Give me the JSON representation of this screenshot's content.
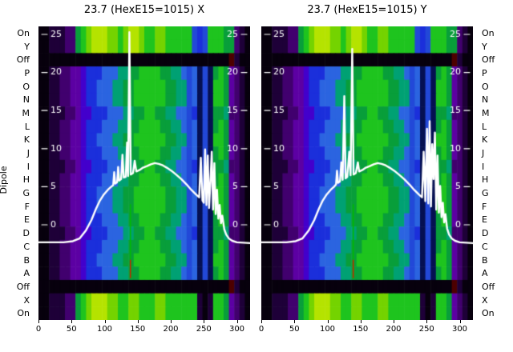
{
  "figure": {
    "background": "#ffffff"
  },
  "y_axis_title": "Dipole",
  "chart_data": {
    "type": "heatmap",
    "description": "Two heatmap panels (X and Y dipole readings) with overlaid white intensity profile line",
    "x_axis": {
      "min": 0,
      "max": 320
    },
    "value_axis": {
      "min": -12.5,
      "max": 26.05
    },
    "x_ticks": [
      0,
      50,
      100,
      150,
      200,
      250,
      300
    ],
    "overlay_ticks": [
      25,
      20,
      15,
      10,
      5,
      0
    ],
    "y_categories": [
      "On",
      "Y",
      "Off",
      "P",
      "O",
      "N",
      "M",
      "L",
      "K",
      "J",
      "I",
      "H",
      "G",
      "F",
      "E",
      "D",
      "C",
      "B",
      "A",
      "Off",
      "X",
      "On"
    ],
    "rows": [
      "top",
      "top",
      "off",
      "mainA",
      "mainB",
      "mainB",
      "mainC",
      "mainA",
      "mainB",
      "mainA",
      "mainC",
      "mainA",
      "mainB",
      "mainB",
      "mainA",
      "mainC",
      "mainA",
      "mainB",
      "mainA",
      "off",
      "bottom",
      "bottom"
    ],
    "palette": {
      "0": "#07000d",
      "1": "#1e0038",
      "2": "#41006e",
      "3": "#5c00a3",
      "4": "#4300cc",
      "5": "#1b2fdb",
      "6": "#2b64e0",
      "7": "#00a173",
      "8": "#089e3a",
      "9": "#1ec41e",
      "a": "#74d300",
      "b": "#b5e300",
      "c": "#2248d8",
      "d": "#051052",
      "e": "#4d0000"
    },
    "patterns": {
      "mainA": "0011223345556667788999988776c6dcd8983210",
      "mainB": "0011223345566677889999998877c6dcd9983210",
      "mainC": "0011122344555666778899887766c5dcd8872210",
      "top": "001112289abbbaa9abba99aa99999c5c99988210",
      "bottom": "001112289abbbaa99aa999aa9999991019983210",
      "off": "000000000000000000000000000000000000e100"
    },
    "curve_color": "#ffffff",
    "panels": [
      {
        "title": "23.7 (HexE15=1015) X",
        "vlines": [
          {
            "x": 139,
            "v1": -7.0,
            "v2": 2.7,
            "color": "#00bb00"
          },
          {
            "x": 139,
            "v1": -7.0,
            "v2": -4.6,
            "color": "#cc2200"
          }
        ],
        "curve": [
          [
            0,
            -2.3
          ],
          [
            38,
            -2.3
          ],
          [
            52,
            -2.15
          ],
          [
            62,
            -1.8
          ],
          [
            72,
            -0.7
          ],
          [
            80,
            0.6
          ],
          [
            87,
            2.1
          ],
          [
            93,
            3.2
          ],
          [
            99,
            4.0
          ],
          [
            105,
            4.6
          ],
          [
            110,
            5.0
          ],
          [
            113,
            5.2
          ],
          [
            114.5,
            6.9
          ],
          [
            116,
            5.4
          ],
          [
            119,
            5.6
          ],
          [
            120.5,
            7.6
          ],
          [
            122,
            5.8
          ],
          [
            125,
            6.0
          ],
          [
            127,
            9.2
          ],
          [
            129,
            6.2
          ],
          [
            132,
            6.3
          ],
          [
            134,
            10.8
          ],
          [
            135.5,
            6.4
          ],
          [
            137.5,
            25.3
          ],
          [
            139.5,
            6.6
          ],
          [
            143,
            6.8
          ],
          [
            145.5,
            8.4
          ],
          [
            148,
            7.0
          ],
          [
            153,
            7.2
          ],
          [
            158,
            7.5
          ],
          [
            164,
            7.7
          ],
          [
            170,
            7.95
          ],
          [
            176,
            8.1
          ],
          [
            182,
            8.0
          ],
          [
            188,
            7.8
          ],
          [
            194,
            7.5
          ],
          [
            201,
            7.1
          ],
          [
            208,
            6.6
          ],
          [
            216,
            6.0
          ],
          [
            224,
            5.3
          ],
          [
            231,
            4.6
          ],
          [
            238,
            4.0
          ],
          [
            243,
            3.6
          ],
          [
            245.5,
            8.8
          ],
          [
            248,
            3.2
          ],
          [
            250,
            2.9
          ],
          [
            252,
            9.9
          ],
          [
            254,
            2.6
          ],
          [
            256,
            9.1
          ],
          [
            258,
            2.2
          ],
          [
            260,
            5.6
          ],
          [
            262,
            9.6
          ],
          [
            264,
            2.0
          ],
          [
            266,
            8.1
          ],
          [
            268,
            1.4
          ],
          [
            270,
            4.6
          ],
          [
            272,
            0.8
          ],
          [
            274,
            2.6
          ],
          [
            276,
            0.2
          ],
          [
            278,
            1.2
          ],
          [
            281,
            -0.6
          ],
          [
            284,
            -1.3
          ],
          [
            288,
            -1.8
          ],
          [
            293,
            -2.1
          ],
          [
            300,
            -2.3
          ],
          [
            310,
            -2.35
          ],
          [
            320,
            -2.4
          ]
        ]
      },
      {
        "title": "23.7 (HexE15=1015) Y",
        "vlines": [
          {
            "x": 139,
            "v1": -7.0,
            "v2": 2.7,
            "color": "#00bb00"
          },
          {
            "x": 139,
            "v1": -7.0,
            "v2": -4.6,
            "color": "#cc2200"
          }
        ],
        "curve": [
          [
            0,
            -2.3
          ],
          [
            38,
            -2.3
          ],
          [
            52,
            -2.15
          ],
          [
            62,
            -1.8
          ],
          [
            72,
            -0.7
          ],
          [
            80,
            0.6
          ],
          [
            87,
            2.1
          ],
          [
            93,
            3.2
          ],
          [
            99,
            4.0
          ],
          [
            105,
            4.6
          ],
          [
            110,
            5.0
          ],
          [
            113,
            5.3
          ],
          [
            114.5,
            7.1
          ],
          [
            116,
            5.5
          ],
          [
            119,
            5.7
          ],
          [
            121,
            8.2
          ],
          [
            123,
            5.9
          ],
          [
            125.5,
            16.9
          ],
          [
            127.5,
            6.1
          ],
          [
            130,
            6.3
          ],
          [
            133,
            9.6
          ],
          [
            135,
            6.5
          ],
          [
            137.5,
            23.1
          ],
          [
            139.5,
            6.6
          ],
          [
            143,
            6.8
          ],
          [
            146,
            8.2
          ],
          [
            148,
            7.0
          ],
          [
            153,
            7.2
          ],
          [
            158,
            7.5
          ],
          [
            164,
            7.7
          ],
          [
            170,
            7.95
          ],
          [
            176,
            8.1
          ],
          [
            182,
            8.0
          ],
          [
            188,
            7.8
          ],
          [
            194,
            7.5
          ],
          [
            201,
            7.1
          ],
          [
            208,
            6.6
          ],
          [
            216,
            6.0
          ],
          [
            224,
            5.3
          ],
          [
            231,
            4.6
          ],
          [
            238,
            4.0
          ],
          [
            243,
            3.6
          ],
          [
            245.5,
            9.6
          ],
          [
            248,
            3.1
          ],
          [
            250.5,
            12.6
          ],
          [
            252.5,
            2.8
          ],
          [
            254.5,
            13.6
          ],
          [
            256.5,
            2.4
          ],
          [
            258.5,
            10.6
          ],
          [
            260.5,
            6.0
          ],
          [
            262.5,
            12.1
          ],
          [
            264.5,
            2.0
          ],
          [
            266.5,
            9.1
          ],
          [
            268.5,
            1.6
          ],
          [
            270.5,
            5.1
          ],
          [
            272.5,
            1.0
          ],
          [
            274.5,
            2.9
          ],
          [
            276.5,
            0.3
          ],
          [
            278.5,
            1.4
          ],
          [
            281,
            -0.5
          ],
          [
            284,
            -1.3
          ],
          [
            288,
            -1.8
          ],
          [
            293,
            -2.1
          ],
          [
            300,
            -2.3
          ],
          [
            310,
            -2.35
          ],
          [
            320,
            -2.4
          ]
        ]
      }
    ]
  }
}
